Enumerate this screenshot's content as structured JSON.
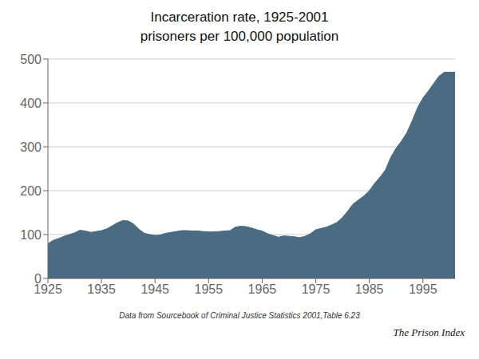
{
  "chart_data": {
    "type": "area",
    "title": "Incarceration rate, 1925-2001",
    "subtitle": "prisoners per 100,000 population",
    "annotations": [
      "Data from Sourcebook of Criminal Justice Statistics 2001,Table 6.23",
      "The Prison Index"
    ],
    "color": "#4a6b82",
    "x": [
      1925,
      1926,
      1927,
      1928,
      1929,
      1930,
      1931,
      1932,
      1933,
      1934,
      1935,
      1936,
      1937,
      1938,
      1939,
      1940,
      1941,
      1942,
      1943,
      1944,
      1945,
      1946,
      1947,
      1948,
      1949,
      1950,
      1951,
      1952,
      1953,
      1954,
      1955,
      1956,
      1957,
      1958,
      1959,
      1960,
      1961,
      1962,
      1963,
      1964,
      1965,
      1966,
      1967,
      1968,
      1969,
      1970,
      1971,
      1972,
      1973,
      1974,
      1975,
      1976,
      1977,
      1978,
      1979,
      1980,
      1981,
      1982,
      1983,
      1984,
      1985,
      1986,
      1987,
      1988,
      1989,
      1990,
      1991,
      1992,
      1993,
      1994,
      1995,
      1996,
      1997,
      1998,
      1999,
      2000,
      2001
    ],
    "values": [
      79,
      87,
      91,
      96,
      100,
      104,
      110,
      108,
      105,
      107,
      109,
      113,
      120,
      127,
      132,
      131,
      124,
      112,
      103,
      100,
      98,
      99,
      103,
      105,
      107,
      109,
      109,
      108,
      108,
      107,
      106,
      106,
      107,
      108,
      109,
      117,
      119,
      118,
      115,
      111,
      108,
      102,
      98,
      94,
      97,
      96,
      95,
      93,
      96,
      102,
      111,
      114,
      117,
      122,
      128,
      139,
      154,
      170,
      179,
      188,
      200,
      217,
      231,
      247,
      276,
      297,
      313,
      332,
      359,
      389,
      411,
      427,
      444,
      461,
      470,
      470,
      470
    ],
    "xlim": [
      1925,
      2001
    ],
    "ylim": [
      0,
      500
    ],
    "xticks": [
      1925,
      1935,
      1945,
      1955,
      1965,
      1975,
      1985,
      1995
    ],
    "yticks": [
      0,
      100,
      200,
      300,
      400,
      500
    ],
    "grid": true
  }
}
